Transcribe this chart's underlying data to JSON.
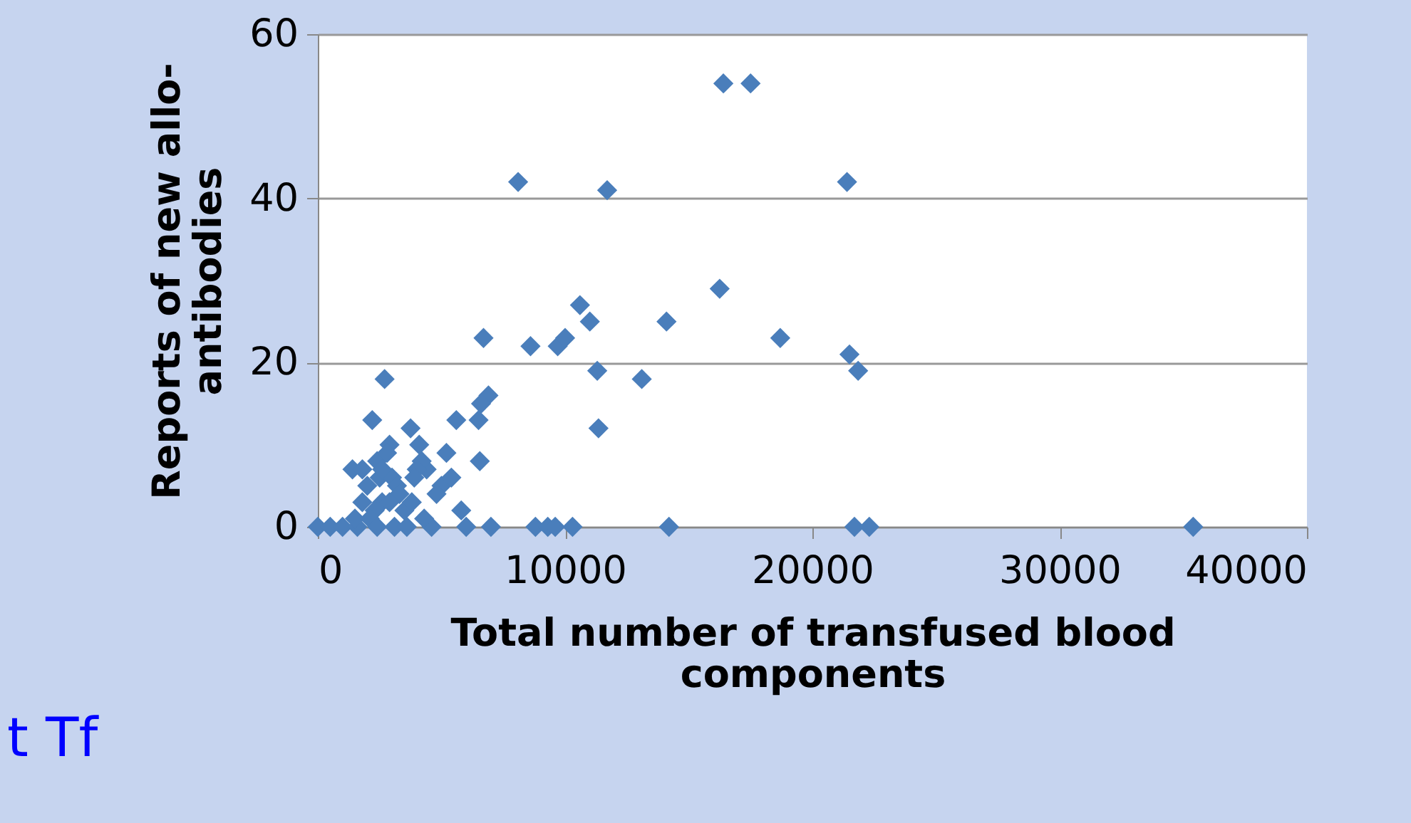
{
  "chart_data": {
    "type": "scatter",
    "xlabel": "Total number of transfused blood\ncomponents",
    "ylabel": "Reports of new allo-\nantibodies",
    "annotations": [
      "t Tf"
    ],
    "x": [
      8100,
      11700,
      16400,
      17500,
      21400,
      16250,
      18700,
      21500,
      21850,
      6700,
      8600,
      9700,
      10000,
      10600,
      11000,
      11300,
      13100,
      14100,
      11350,
      6900,
      6600,
      6500,
      6550,
      5600,
      2700,
      2200,
      3750,
      2900,
      1400,
      4400,
      5000,
      5800,
      0,
      500,
      1000,
      7000,
      8800,
      9300,
      9600,
      10300,
      14200,
      21700,
      22300,
      35400,
      1800,
      2000,
      2400,
      2500,
      2600,
      2800,
      3000,
      3200,
      3500,
      3800,
      4200,
      4000,
      4800,
      5200,
      2300,
      3100,
      1600,
      3600,
      4600,
      6000,
      1800,
      4300,
      2100,
      3300,
      2600,
      3900,
      2400,
      1500,
      5400,
      4100,
      2900
    ],
    "values": [
      42,
      41,
      54,
      54,
      42,
      29,
      23,
      21,
      19,
      23,
      22,
      22,
      23,
      27,
      25,
      19,
      18,
      25,
      12,
      16,
      15,
      13,
      8,
      13,
      18,
      13,
      12,
      10,
      7,
      7,
      5,
      2,
      0,
      0,
      0,
      0,
      0,
      0,
      0,
      0,
      0,
      0,
      0,
      0,
      7,
      5,
      8,
      6,
      3,
      9,
      6,
      5,
      2,
      3,
      8,
      7,
      4,
      9,
      2,
      0,
      0,
      0,
      0,
      0,
      3,
      1,
      1,
      4,
      7,
      6,
      0,
      1,
      6,
      10,
      3
    ],
    "color": "#4a7ebb",
    "marker": "diamond",
    "xlim": [
      0,
      40000
    ],
    "xticks": [
      0,
      10000,
      20000,
      30000,
      40000
    ],
    "ylim": [
      0,
      60
    ],
    "yticks": [
      0,
      20,
      40,
      60
    ],
    "grid": "y"
  }
}
